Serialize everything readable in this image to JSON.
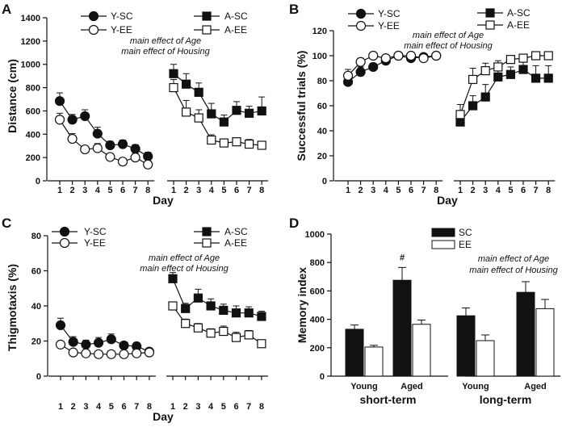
{
  "panel_labels": [
    "A",
    "B",
    "C",
    "D"
  ],
  "chart_data": [
    {
      "panel": "A",
      "type": "line",
      "title": "",
      "xlabel": "Day",
      "ylabel": "Distance (cm)",
      "ylim": [
        0,
        1400
      ],
      "yticks": [
        0,
        200,
        400,
        600,
        800,
        1000,
        1200,
        1400
      ],
      "x": [
        1,
        2,
        3,
        4,
        5,
        6,
        7,
        8
      ],
      "series": [
        {
          "name": "Y-SC",
          "marker": "filled-circle",
          "group": "young",
          "values": [
            685,
            525,
            555,
            405,
            305,
            315,
            275,
            210
          ],
          "errors": [
            70,
            45,
            55,
            55,
            35,
            35,
            35,
            35
          ]
        },
        {
          "name": "Y-EE",
          "marker": "open-circle",
          "group": "young",
          "values": [
            525,
            360,
            270,
            280,
            205,
            165,
            200,
            140
          ],
          "errors": [
            55,
            45,
            25,
            40,
            30,
            30,
            35,
            25
          ]
        },
        {
          "name": "A-SC",
          "marker": "filled-square",
          "group": "aged",
          "values": [
            920,
            830,
            760,
            575,
            505,
            605,
            580,
            600
          ],
          "errors": [
            80,
            90,
            80,
            90,
            60,
            75,
            60,
            120
          ]
        },
        {
          "name": "A-EE",
          "marker": "open-square",
          "group": "aged",
          "values": [
            800,
            590,
            540,
            350,
            325,
            335,
            315,
            305
          ],
          "errors": [
            70,
            100,
            70,
            45,
            30,
            30,
            40,
            30
          ]
        }
      ],
      "annotations": [
        "main effect of Age",
        "main effect of Housing"
      ]
    },
    {
      "panel": "B",
      "type": "line",
      "title": "",
      "xlabel": "Day",
      "ylabel": "Successful trials (%)",
      "ylim": [
        0,
        120
      ],
      "yticks": [
        0,
        20,
        40,
        60,
        80,
        100,
        120
      ],
      "x": [
        1,
        2,
        3,
        4,
        5,
        6,
        7,
        8
      ],
      "series": [
        {
          "name": "Y-SC",
          "marker": "filled-circle",
          "group": "young",
          "values": [
            79,
            87,
            91,
            96,
            100,
            98,
            99,
            100
          ],
          "errors": [
            4,
            4,
            3,
            3,
            1,
            2,
            1,
            0
          ]
        },
        {
          "name": "Y-EE",
          "marker": "open-circle",
          "group": "young",
          "values": [
            84,
            95,
            100,
            98,
            100,
            100,
            98,
            100
          ],
          "errors": [
            5,
            3,
            1,
            2,
            0,
            1,
            2,
            0
          ]
        },
        {
          "name": "A-SC",
          "marker": "filled-square",
          "group": "aged",
          "values": [
            47,
            60,
            67,
            83,
            85,
            89,
            82,
            82
          ],
          "errors": [
            7,
            8,
            10,
            6,
            6,
            6,
            10,
            10
          ]
        },
        {
          "name": "A-EE",
          "marker": "open-square",
          "group": "aged",
          "values": [
            53,
            81,
            88,
            91,
            97,
            98,
            100,
            100
          ],
          "errors": [
            8,
            9,
            6,
            5,
            3,
            2,
            1,
            1
          ]
        }
      ],
      "annotations": [
        "main effect of Age",
        "main effect of Housing"
      ]
    },
    {
      "panel": "C",
      "type": "line",
      "title": "",
      "xlabel": "Day",
      "ylabel": "Thigmotaxis (%)",
      "ylim": [
        0,
        80
      ],
      "yticks": [
        0,
        20,
        40,
        60,
        80
      ],
      "x": [
        1,
        2,
        3,
        4,
        5,
        6,
        7,
        8
      ],
      "series": [
        {
          "name": "Y-SC",
          "marker": "filled-circle",
          "group": "young",
          "values": [
            29,
            19.5,
            18,
            19,
            21,
            17.5,
            17,
            14
          ],
          "errors": [
            4,
            3,
            2.5,
            3,
            3,
            2,
            2,
            1.5
          ]
        },
        {
          "name": "Y-EE",
          "marker": "open-circle",
          "group": "young",
          "values": [
            18,
            13.5,
            13,
            12.5,
            12.5,
            12.5,
            13,
            13.5
          ],
          "errors": [
            1.5,
            1.5,
            1.5,
            1.5,
            1.5,
            1.5,
            1.5,
            1.5
          ]
        },
        {
          "name": "A-SC",
          "marker": "filled-square",
          "group": "aged",
          "values": [
            55.5,
            38.5,
            44.5,
            40,
            37.5,
            36,
            36,
            34
          ],
          "errors": [
            3.5,
            3,
            5,
            4,
            3.5,
            4,
            3.5,
            3
          ]
        },
        {
          "name": "A-EE",
          "marker": "open-square",
          "group": "aged",
          "values": [
            40,
            30,
            27.5,
            24.5,
            25.5,
            22,
            23.5,
            18.5
          ],
          "errors": [
            2,
            2.5,
            2.5,
            2.5,
            3,
            3,
            2.5,
            2
          ]
        }
      ],
      "annotations": [
        "main effect of Age",
        "main effect of Housing"
      ]
    },
    {
      "panel": "D",
      "type": "bar",
      "title": "",
      "xlabel": "",
      "ylabel": "Memory index",
      "ylim": [
        0,
        1000
      ],
      "yticks": [
        0,
        200,
        400,
        600,
        800,
        1000
      ],
      "categories": [
        "Young",
        "Aged",
        "Young",
        "Aged"
      ],
      "category_groups": [
        {
          "label": "short-term",
          "categories": [
            0,
            1
          ]
        },
        {
          "label": "long-term",
          "categories": [
            2,
            3
          ]
        }
      ],
      "series": [
        {
          "name": "SC",
          "fill": "#111111",
          "values": [
            330,
            675,
            425,
            590
          ],
          "errors": [
            30,
            90,
            55,
            75
          ]
        },
        {
          "name": "EE",
          "fill": "#ffffff",
          "values": [
            205,
            365,
            250,
            475
          ],
          "errors": [
            12,
            30,
            40,
            65
          ]
        }
      ],
      "significance": [
        {
          "category": 1,
          "series": "SC",
          "mark": "#"
        }
      ],
      "annotations": [
        "main effect of Age",
        "main effect of Housing"
      ]
    }
  ]
}
